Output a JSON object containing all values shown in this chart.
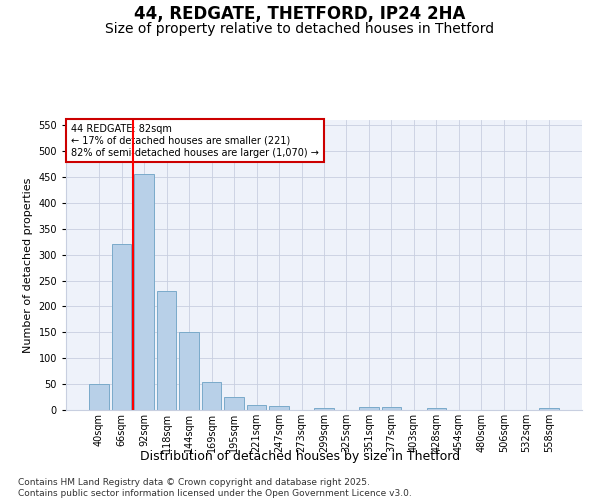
{
  "title": "44, REDGATE, THETFORD, IP24 2HA",
  "subtitle": "Size of property relative to detached houses in Thetford",
  "xlabel": "Distribution of detached houses by size in Thetford",
  "ylabel": "Number of detached properties",
  "bins": [
    "40sqm",
    "66sqm",
    "92sqm",
    "118sqm",
    "144sqm",
    "169sqm",
    "195sqm",
    "221sqm",
    "247sqm",
    "273sqm",
    "299sqm",
    "325sqm",
    "351sqm",
    "377sqm",
    "403sqm",
    "428sqm",
    "454sqm",
    "480sqm",
    "506sqm",
    "532sqm",
    "558sqm"
  ],
  "values": [
    50,
    320,
    455,
    230,
    150,
    55,
    25,
    10,
    8,
    0,
    4,
    0,
    6,
    6,
    0,
    3,
    0,
    0,
    0,
    0,
    4
  ],
  "bar_color": "#b8d0e8",
  "bar_edge_color": "#7aaaca",
  "annotation_text": "44 REDGATE: 82sqm\n← 17% of detached houses are smaller (221)\n82% of semi-detached houses are larger (1,070) →",
  "annotation_box_color": "#ffffff",
  "annotation_box_edge": "#cc0000",
  "ylim": [
    0,
    560
  ],
  "yticks": [
    0,
    50,
    100,
    150,
    200,
    250,
    300,
    350,
    400,
    450,
    500,
    550
  ],
  "grid_color": "#c8cfe0",
  "bg_color": "#eef2fa",
  "footnote": "Contains HM Land Registry data © Crown copyright and database right 2025.\nContains public sector information licensed under the Open Government Licence v3.0.",
  "title_fontsize": 12,
  "subtitle_fontsize": 10,
  "xlabel_fontsize": 9,
  "ylabel_fontsize": 8,
  "tick_fontsize": 7,
  "footnote_fontsize": 6.5
}
